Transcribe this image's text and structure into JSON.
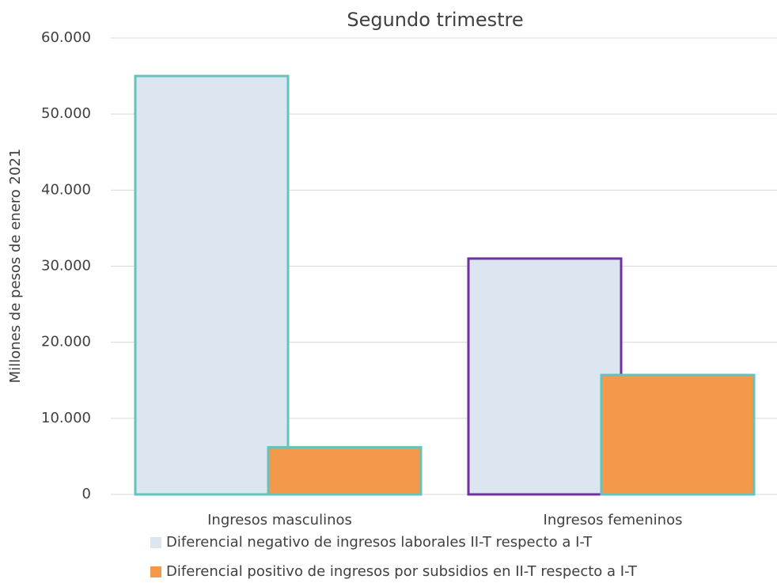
{
  "chart_data": {
    "type": "bar",
    "title": "Segundo trimestre",
    "ylabel": "Millones de pesos de enero 2021",
    "categories": [
      "Ingresos masculinos",
      "Ingresos femeninos"
    ],
    "series": [
      {
        "name": "Diferencial negativo de ingresos laborales II-T respecto a I-T",
        "color": "#dce6f1",
        "edgecolors": [
          "#66c2bd",
          "#7030a0"
        ],
        "values": [
          55000,
          31000
        ]
      },
      {
        "name": "Diferencial positivo de ingresos por subsidios en II-T respecto a I-T",
        "color": "#f4994c",
        "edgecolors": [
          "#66c2bd",
          "#66c2bd"
        ],
        "values": [
          6200,
          15700
        ]
      }
    ],
    "ylim": [
      0,
      60000
    ],
    "yticks": [
      0,
      {
        "value": 10000,
        "label": "10.000"
      },
      {
        "value": 20000,
        "label": "20.000"
      },
      {
        "value": 30000,
        "label": "30.000"
      },
      {
        "value": 40000,
        "label": "40.000"
      },
      {
        "value": 50000,
        "label": "50.000"
      },
      {
        "value": 60000,
        "label": "60.000"
      }
    ],
    "grid": true,
    "legend": "bottom"
  }
}
